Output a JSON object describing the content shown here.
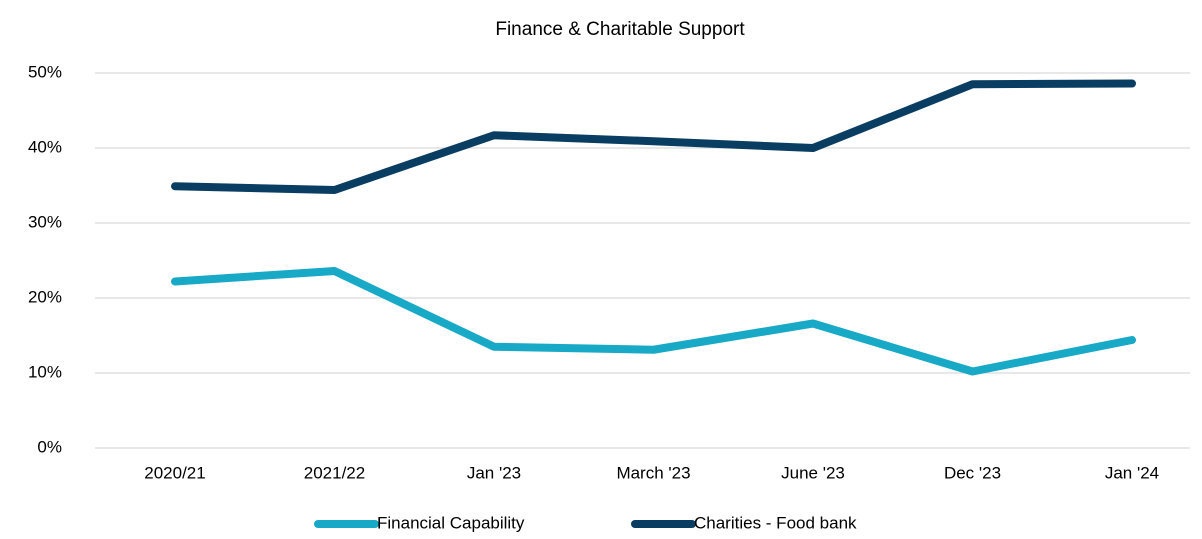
{
  "chart_data": {
    "type": "line",
    "title": "Finance & Charitable Support",
    "categories": [
      "2020/21",
      "2021/22",
      "Jan '23",
      "March '23",
      "June '23",
      "Dec '23",
      "Jan '24"
    ],
    "series": [
      {
        "name": "Financial Capability",
        "color": "#17a9c6",
        "values": [
          22.2,
          23.6,
          13.5,
          13.1,
          16.6,
          10.2,
          14.4
        ]
      },
      {
        "name": "Charities - Food bank",
        "color": "#0a3d62",
        "values": [
          34.9,
          34.4,
          41.7,
          40.9,
          40.0,
          48.5,
          48.6
        ]
      }
    ],
    "ylim": [
      0,
      50
    ],
    "yticks": [
      {
        "value": 0,
        "label": "0%"
      },
      {
        "value": 10,
        "label": "10%"
      },
      {
        "value": 20,
        "label": "20%"
      },
      {
        "value": 30,
        "label": "30%"
      },
      {
        "value": 40,
        "label": "40%"
      },
      {
        "value": 50,
        "label": "50%"
      }
    ],
    "grid": true,
    "legend": "bottom"
  }
}
